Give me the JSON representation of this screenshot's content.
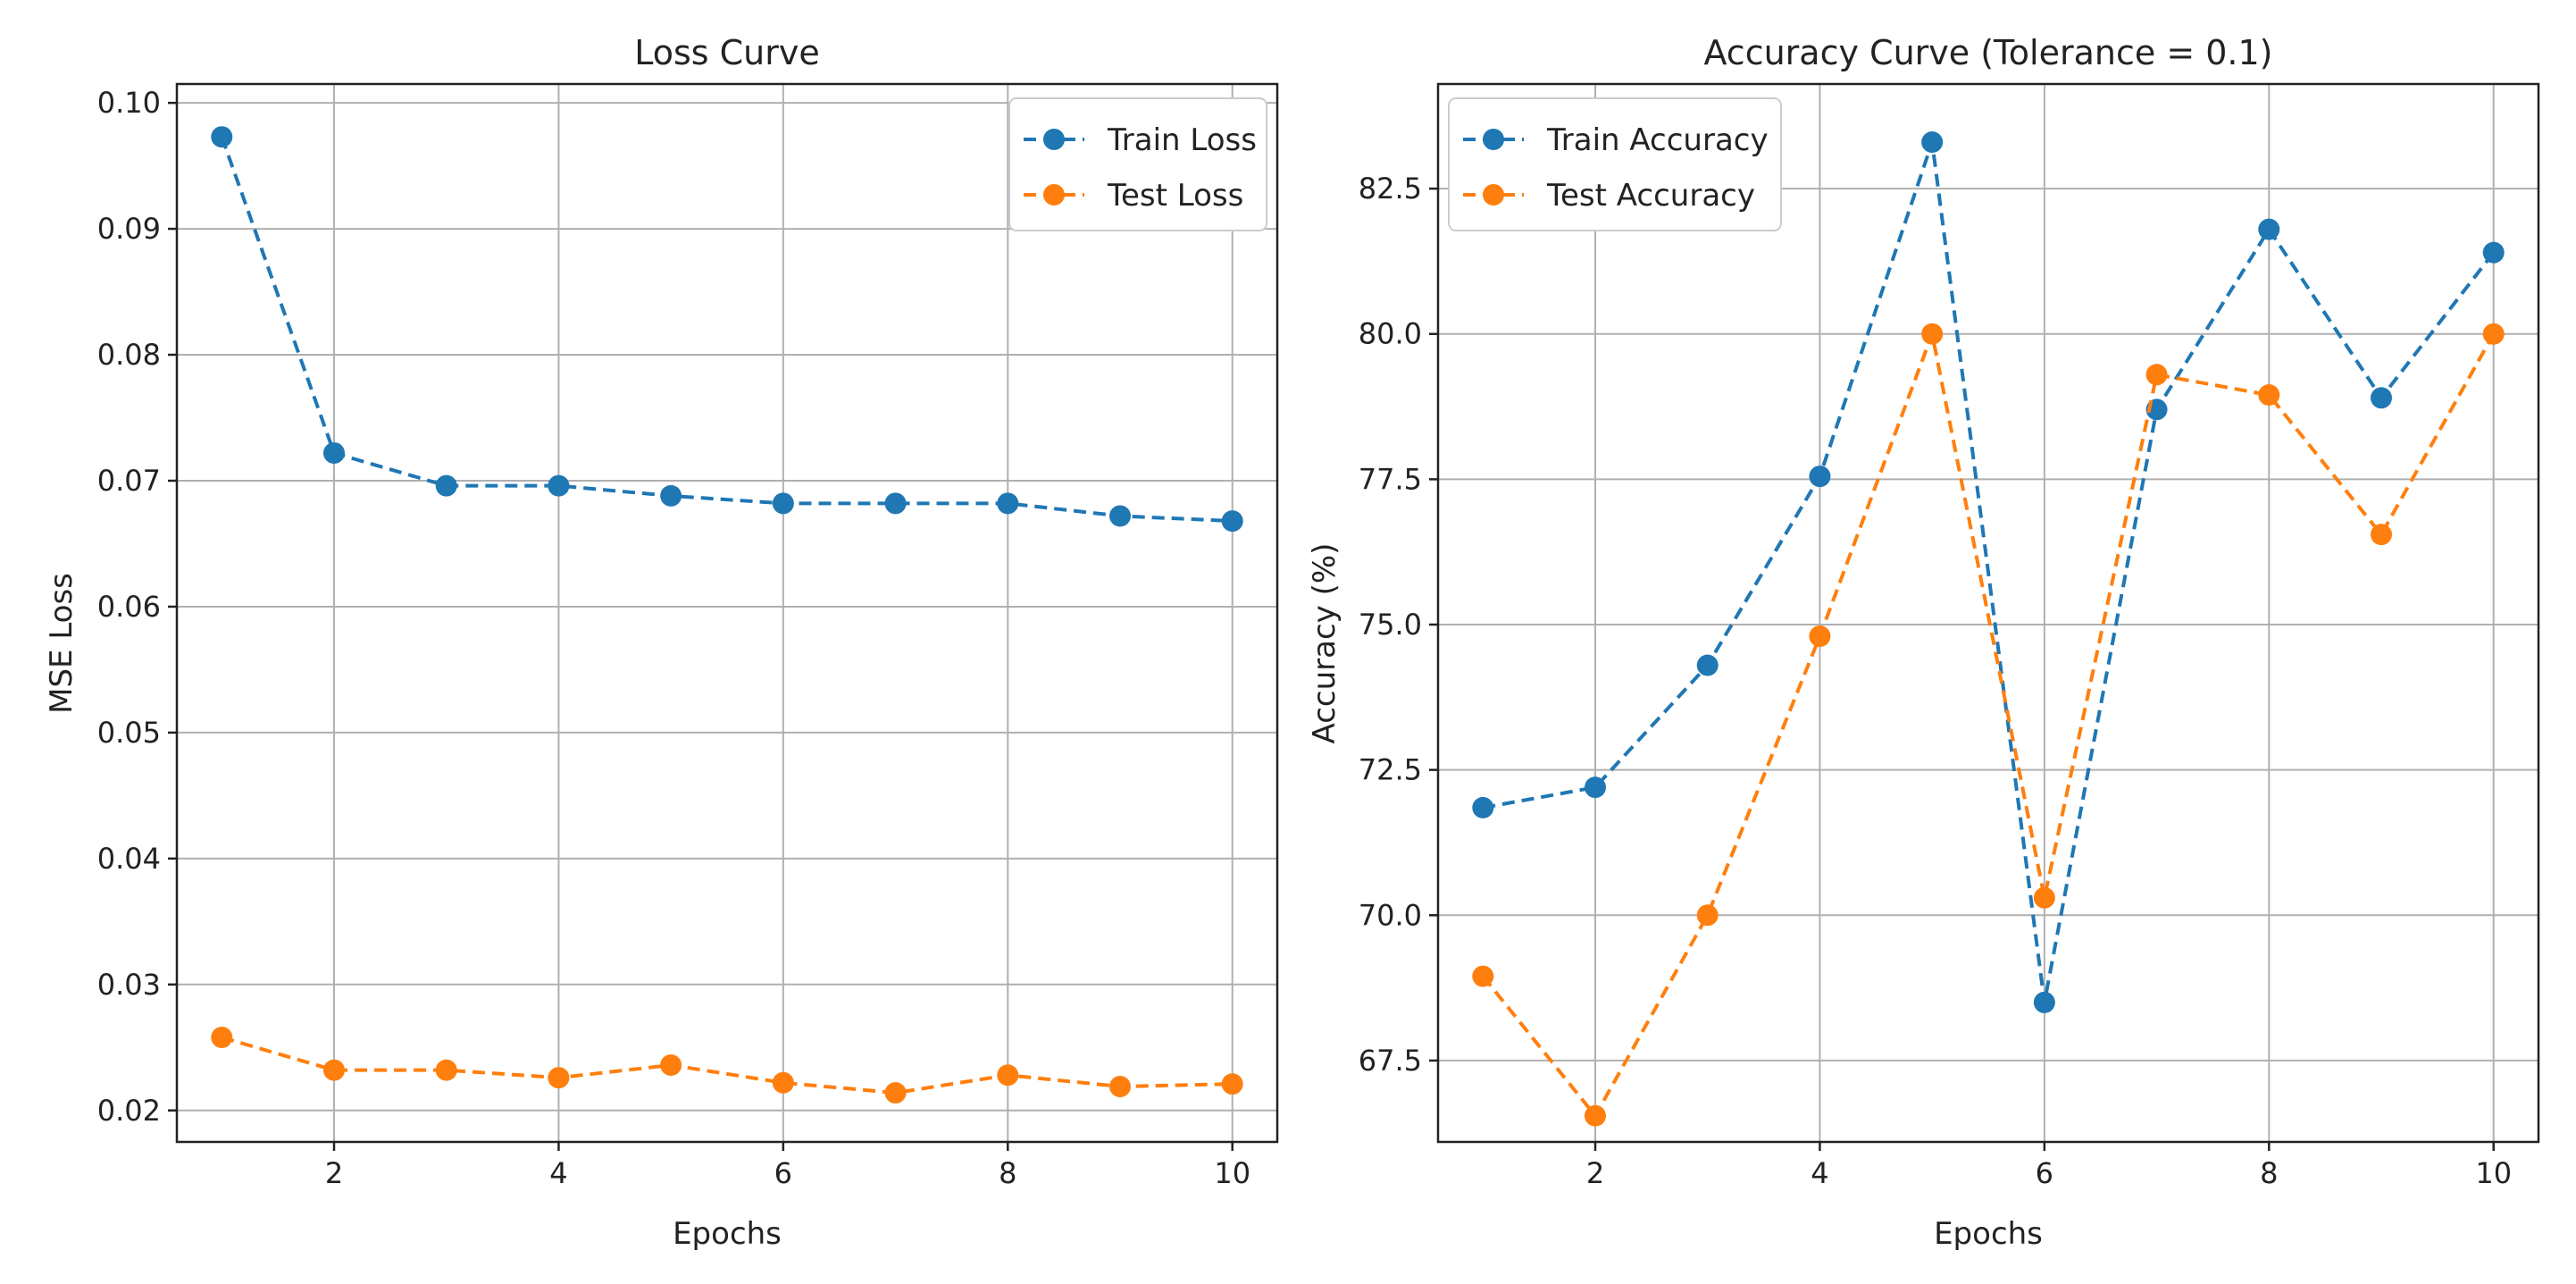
{
  "chart_data": [
    {
      "type": "line",
      "title": "Loss Curve",
      "xlabel": "Epochs",
      "ylabel": "MSE Loss",
      "xlim": [
        0.6,
        10.4
      ],
      "ylim": [
        0.0175,
        0.1015
      ],
      "x": [
        1,
        2,
        3,
        4,
        5,
        6,
        7,
        8,
        9,
        10
      ],
      "xticks": [
        2,
        4,
        6,
        8,
        10
      ],
      "yticks": [
        0.02,
        0.03,
        0.04,
        0.05,
        0.06,
        0.07,
        0.08,
        0.09,
        0.1
      ],
      "ytick_labels": [
        "0.02",
        "0.03",
        "0.04",
        "0.05",
        "0.06",
        "0.07",
        "0.08",
        "0.09",
        "0.10"
      ],
      "grid": true,
      "legend_position": "top-right",
      "series": [
        {
          "name": "Train Loss",
          "color": "#1f77b4",
          "style": "dashed",
          "marker": "circle",
          "values": [
            0.0973,
            0.0722,
            0.0696,
            0.0696,
            0.0688,
            0.0682,
            0.0682,
            0.0682,
            0.0672,
            0.0668
          ]
        },
        {
          "name": "Test Loss",
          "color": "#ff7f0e",
          "style": "dashed",
          "marker": "circle",
          "values": [
            0.0258,
            0.0232,
            0.0232,
            0.0226,
            0.0236,
            0.0222,
            0.0214,
            0.0228,
            0.0219,
            0.0221
          ]
        }
      ]
    },
    {
      "type": "line",
      "title": "Accuracy Curve (Tolerance = 0.1)",
      "xlabel": "Epochs",
      "ylabel": "Accuracy (%)",
      "xlim": [
        0.6,
        10.4
      ],
      "ylim": [
        66.1,
        84.3
      ],
      "x": [
        1,
        2,
        3,
        4,
        5,
        6,
        7,
        8,
        9,
        10
      ],
      "xticks": [
        2,
        4,
        6,
        8,
        10
      ],
      "yticks": [
        67.5,
        70.0,
        72.5,
        75.0,
        77.5,
        80.0,
        82.5
      ],
      "ytick_labels": [
        "67.5",
        "70.0",
        "72.5",
        "75.0",
        "77.5",
        "80.0",
        "82.5"
      ],
      "grid": true,
      "legend_position": "top-left",
      "series": [
        {
          "name": "Train Accuracy",
          "color": "#1f77b4",
          "style": "dashed",
          "marker": "circle",
          "values": [
            71.85,
            72.2,
            74.3,
            77.55,
            83.3,
            68.5,
            78.7,
            81.8,
            78.9,
            81.4
          ]
        },
        {
          "name": "Test Accuracy",
          "color": "#ff7f0e",
          "style": "dashed",
          "marker": "circle",
          "values": [
            68.95,
            66.55,
            70.0,
            74.8,
            80.0,
            70.3,
            79.3,
            78.95,
            76.55,
            80.0
          ]
        }
      ]
    }
  ]
}
